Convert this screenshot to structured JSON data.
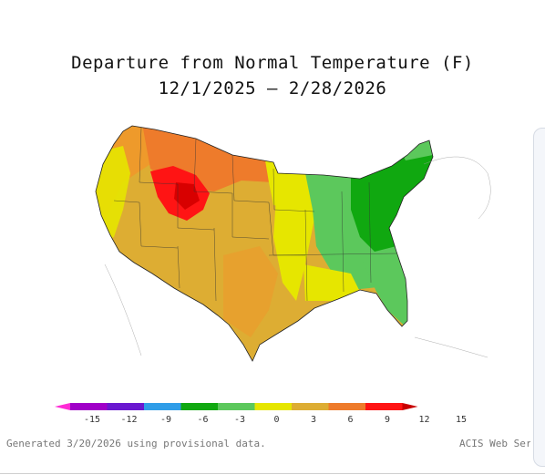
{
  "map": {
    "title_line1": "Departure from Normal Temperature (F)",
    "title_line2": "12/1/2025 – 2/28/2026"
  },
  "legend": {
    "colors": [
      "#ff2bd6",
      "#a000c8",
      "#6a18d0",
      "#2f9de8",
      "#10a810",
      "#5cc85c",
      "#e6e600",
      "#ddad33",
      "#ee7b2b",
      "#ff1414",
      "#c80000"
    ],
    "ticks": [
      "-15",
      "-12",
      "-9",
      "-6",
      "-3",
      "0",
      "3",
      "6",
      "9",
      "12",
      "15"
    ]
  },
  "footer": {
    "generated": "Generated 3/20/2026 using provisional data.",
    "source": "ACIS Web Servi"
  }
}
